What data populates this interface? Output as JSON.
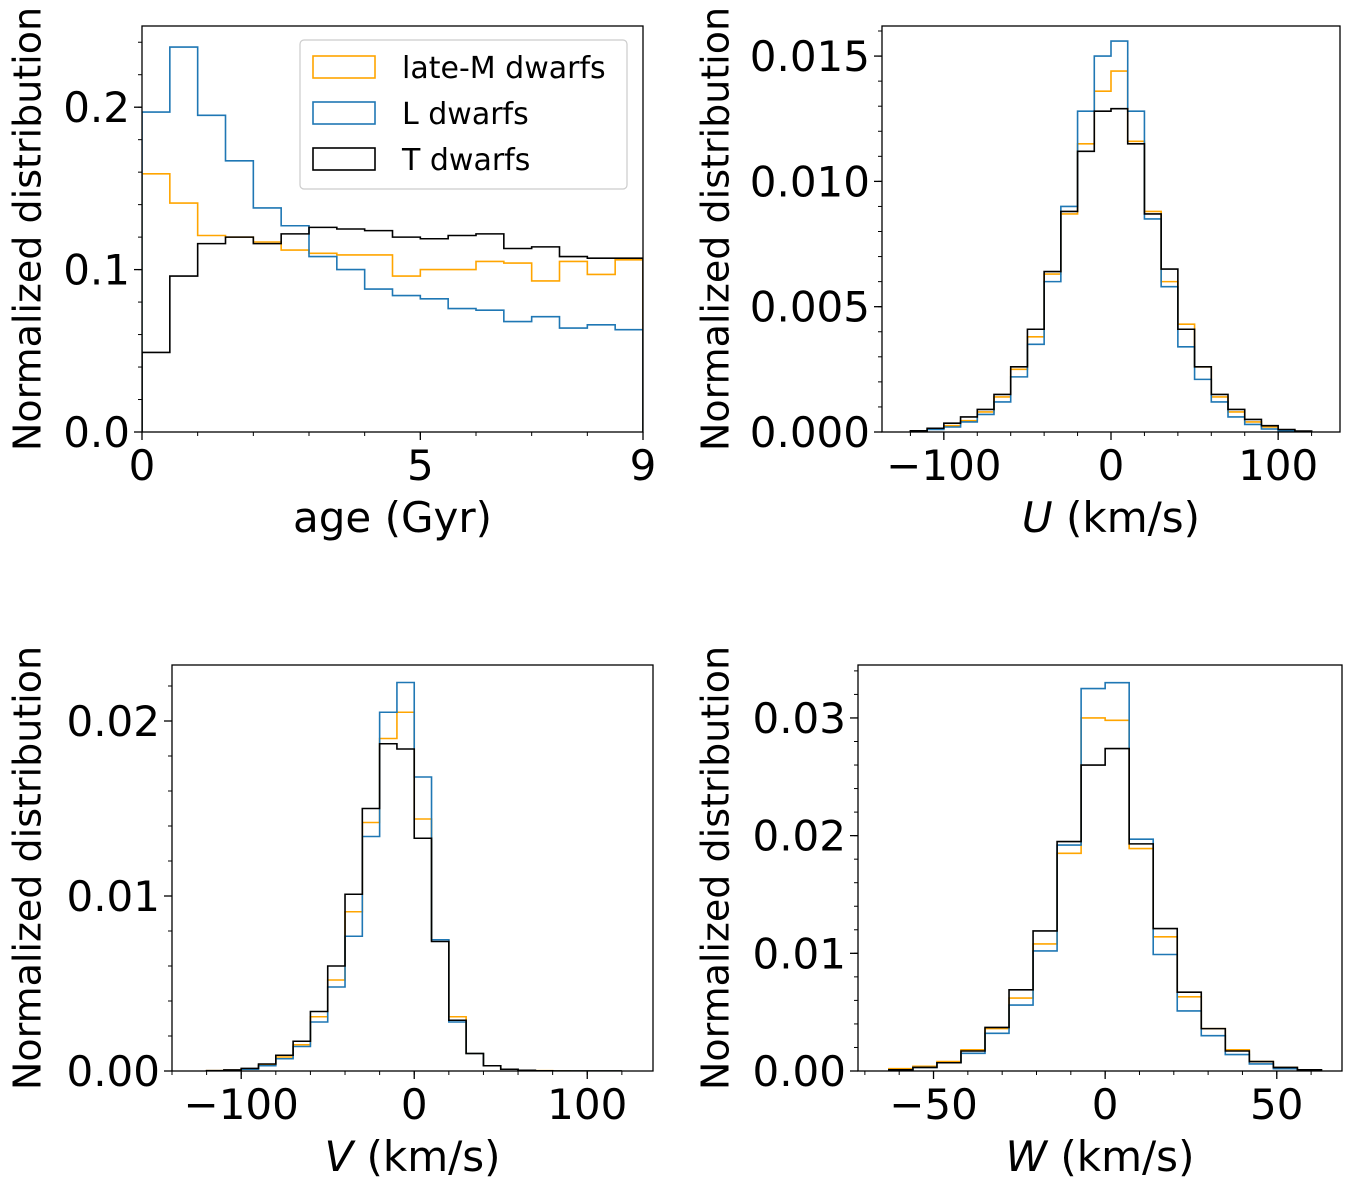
{
  "colors": {
    "late_M": "#FFA500",
    "L": "#1f77b4",
    "T": "#000000",
    "axis": "#000000",
    "background": "#ffffff"
  },
  "chart_data": [
    {
      "type": "histogram-step",
      "xlabel": "age (Gyr)",
      "ylabel": "Normalized distribution",
      "xlim": [
        0,
        9
      ],
      "ylim": [
        0,
        0.25
      ],
      "xticks": [
        0,
        5,
        9
      ],
      "xtick_labels": [
        "0",
        "5",
        "9"
      ],
      "yticks": [
        0.0,
        0.1,
        0.2
      ],
      "ytick_labels": [
        "0.0",
        "0.1",
        "0.2"
      ],
      "grid": false,
      "legend_position": "upper-right",
      "bin_edges": [
        0,
        0.5,
        1,
        1.5,
        2,
        2.5,
        3,
        3.5,
        4,
        4.5,
        5,
        5.5,
        6,
        6.5,
        7,
        7.5,
        8,
        8.5,
        9
      ],
      "series": [
        {
          "name": "late-M dwarfs",
          "color_key": "late_M",
          "values": [
            0.159,
            0.141,
            0.121,
            0.12,
            0.117,
            0.112,
            0.11,
            0.109,
            0.109,
            0.096,
            0.1,
            0.1,
            0.105,
            0.104,
            0.093,
            0.105,
            0.097,
            0.106
          ]
        },
        {
          "name": "L dwarfs",
          "color_key": "L",
          "values": [
            0.197,
            0.237,
            0.195,
            0.167,
            0.138,
            0.127,
            0.108,
            0.1,
            0.088,
            0.084,
            0.082,
            0.076,
            0.075,
            0.068,
            0.071,
            0.064,
            0.066,
            0.063
          ]
        },
        {
          "name": "T dwarfs",
          "color_key": "T",
          "values": [
            0.049,
            0.096,
            0.116,
            0.12,
            0.116,
            0.122,
            0.126,
            0.125,
            0.124,
            0.12,
            0.119,
            0.121,
            0.122,
            0.113,
            0.114,
            0.108,
            0.107,
            0.107
          ]
        }
      ]
    },
    {
      "type": "histogram-step",
      "xlabel": "U (km/s)",
      "xlabel_italic": "U",
      "xlabel_rest": " (km/s)",
      "ylabel": "Normalized distribution",
      "xlim": [
        -137,
        137
      ],
      "ylim": [
        0,
        0.0162
      ],
      "xticks": [
        -100,
        0,
        100
      ],
      "xtick_labels": [
        "−100",
        "0",
        "100"
      ],
      "yticks": [
        0.0,
        0.005,
        0.01,
        0.015
      ],
      "ytick_labels": [
        "0.000",
        "0.005",
        "0.010",
        "0.015"
      ],
      "grid": false,
      "bin_edges": [
        -120,
        -110,
        -100,
        -90,
        -80,
        -70,
        -60,
        -50,
        -40,
        -30,
        -20,
        -10,
        0,
        10,
        20,
        30,
        40,
        50,
        60,
        70,
        80,
        90,
        100,
        110,
        120
      ],
      "series": [
        {
          "name": "late-M dwarfs",
          "color_key": "late_M",
          "values": [
            5e-05,
            0.00012,
            0.00025,
            0.00045,
            0.0008,
            0.0014,
            0.0025,
            0.0038,
            0.0063,
            0.0087,
            0.0115,
            0.0136,
            0.0144,
            0.0116,
            0.0088,
            0.006,
            0.0043,
            0.0026,
            0.0014,
            0.0008,
            0.0004,
            0.0002,
            8e-05,
            3e-05
          ]
        },
        {
          "name": "L dwarfs",
          "color_key": "L",
          "values": [
            3e-05,
            0.0001,
            0.0002,
            0.0004,
            0.0007,
            0.0012,
            0.0022,
            0.0035,
            0.006,
            0.009,
            0.0128,
            0.015,
            0.0156,
            0.0128,
            0.0085,
            0.0058,
            0.0034,
            0.0021,
            0.0012,
            0.0006,
            0.0003,
            0.00012,
            5e-05,
            2e-05
          ]
        },
        {
          "name": "T dwarfs",
          "color_key": "T",
          "values": [
            5e-05,
            0.00015,
            0.00035,
            0.0006,
            0.0009,
            0.0015,
            0.0026,
            0.0041,
            0.0064,
            0.0088,
            0.0112,
            0.0128,
            0.0129,
            0.0115,
            0.0087,
            0.0065,
            0.0041,
            0.0026,
            0.0015,
            0.0009,
            0.0005,
            0.00025,
            0.0001,
            4e-05
          ]
        }
      ]
    },
    {
      "type": "histogram-step",
      "xlabel": "V (km/s)",
      "xlabel_italic": "V",
      "xlabel_rest": " (km/s)",
      "ylabel": "Normalized distribution",
      "xlim": [
        -140,
        138
      ],
      "ylim": [
        0,
        0.0232
      ],
      "xticks": [
        -100,
        0,
        100
      ],
      "xtick_labels": [
        "−100",
        "0",
        "100"
      ],
      "yticks": [
        0.0,
        0.01,
        0.02
      ],
      "ytick_labels": [
        "0.00",
        "0.01",
        "0.02"
      ],
      "grid": false,
      "bin_edges": [
        -120,
        -110,
        -100,
        -90,
        -80,
        -70,
        -60,
        -50,
        -40,
        -30,
        -20,
        -10,
        0,
        10,
        20,
        30,
        40,
        50,
        60,
        70,
        80,
        90,
        100,
        110,
        120
      ],
      "series": [
        {
          "name": "late-M dwarfs",
          "color_key": "late_M",
          "values": [
            2e-05,
            5e-05,
            0.00012,
            0.00035,
            0.0008,
            0.0015,
            0.0031,
            0.0052,
            0.0091,
            0.0142,
            0.019,
            0.0205,
            0.0144,
            0.0075,
            0.0031,
            0.001,
            0.0003,
            0.0001,
            4e-05,
            2e-05,
            1e-05,
            0.0,
            0.0,
            0.0
          ]
        },
        {
          "name": "L dwarfs",
          "color_key": "L",
          "values": [
            1e-05,
            4e-05,
            0.0001,
            0.0003,
            0.0007,
            0.0014,
            0.0028,
            0.0048,
            0.0077,
            0.0134,
            0.0205,
            0.0222,
            0.0168,
            0.0075,
            0.0028,
            0.001,
            0.0003,
            0.0001,
            3e-05,
            1e-05,
            0.0,
            0.0,
            0.0,
            0.0
          ]
        },
        {
          "name": "T dwarfs",
          "color_key": "T",
          "values": [
            2e-05,
            6e-05,
            0.00015,
            0.0004,
            0.0009,
            0.0017,
            0.0034,
            0.006,
            0.0101,
            0.015,
            0.0187,
            0.0184,
            0.0133,
            0.0074,
            0.0029,
            0.001,
            0.0003,
            0.0001,
            4e-05,
            1e-05,
            0.0,
            0.0,
            0.0,
            0.0
          ]
        }
      ]
    },
    {
      "type": "histogram-step",
      "xlabel": "W (km/s)",
      "xlabel_italic": "W",
      "xlabel_rest": " (km/s)",
      "ylabel": "Normalized distribution",
      "xlim": [
        -72,
        69
      ],
      "ylim": [
        0,
        0.0345
      ],
      "xticks": [
        -50,
        0,
        50
      ],
      "xtick_labels": [
        "−50",
        "0",
        "50"
      ],
      "yticks": [
        0.0,
        0.01,
        0.02,
        0.03
      ],
      "ytick_labels": [
        "0.00",
        "0.01",
        "0.02",
        "0.03"
      ],
      "grid": false,
      "bin_edges": [
        -63,
        -56,
        -49,
        -42,
        -35,
        -28,
        -21,
        -14,
        -7,
        0,
        7,
        14,
        21,
        28,
        35,
        42,
        49,
        56,
        63
      ],
      "series": [
        {
          "name": "late-M dwarfs",
          "color_key": "late_M",
          "values": [
            0.0002,
            0.0004,
            0.0008,
            0.0018,
            0.0036,
            0.0062,
            0.0108,
            0.0185,
            0.03,
            0.0298,
            0.0189,
            0.0114,
            0.0063,
            0.0036,
            0.0018,
            0.0008,
            0.0003,
            0.0001
          ]
        },
        {
          "name": "L dwarfs",
          "color_key": "L",
          "values": [
            0.0001,
            0.0003,
            0.0007,
            0.0015,
            0.0032,
            0.0056,
            0.0102,
            0.0192,
            0.0325,
            0.033,
            0.0197,
            0.0099,
            0.0051,
            0.003,
            0.0014,
            0.0006,
            0.0002,
            0.0001
          ]
        },
        {
          "name": "T dwarfs",
          "color_key": "T",
          "values": [
            0.0001,
            0.0003,
            0.0007,
            0.0017,
            0.0037,
            0.0069,
            0.0119,
            0.0195,
            0.026,
            0.0274,
            0.0193,
            0.0121,
            0.0067,
            0.0036,
            0.0017,
            0.0008,
            0.0003,
            0.0001
          ]
        }
      ]
    }
  ]
}
